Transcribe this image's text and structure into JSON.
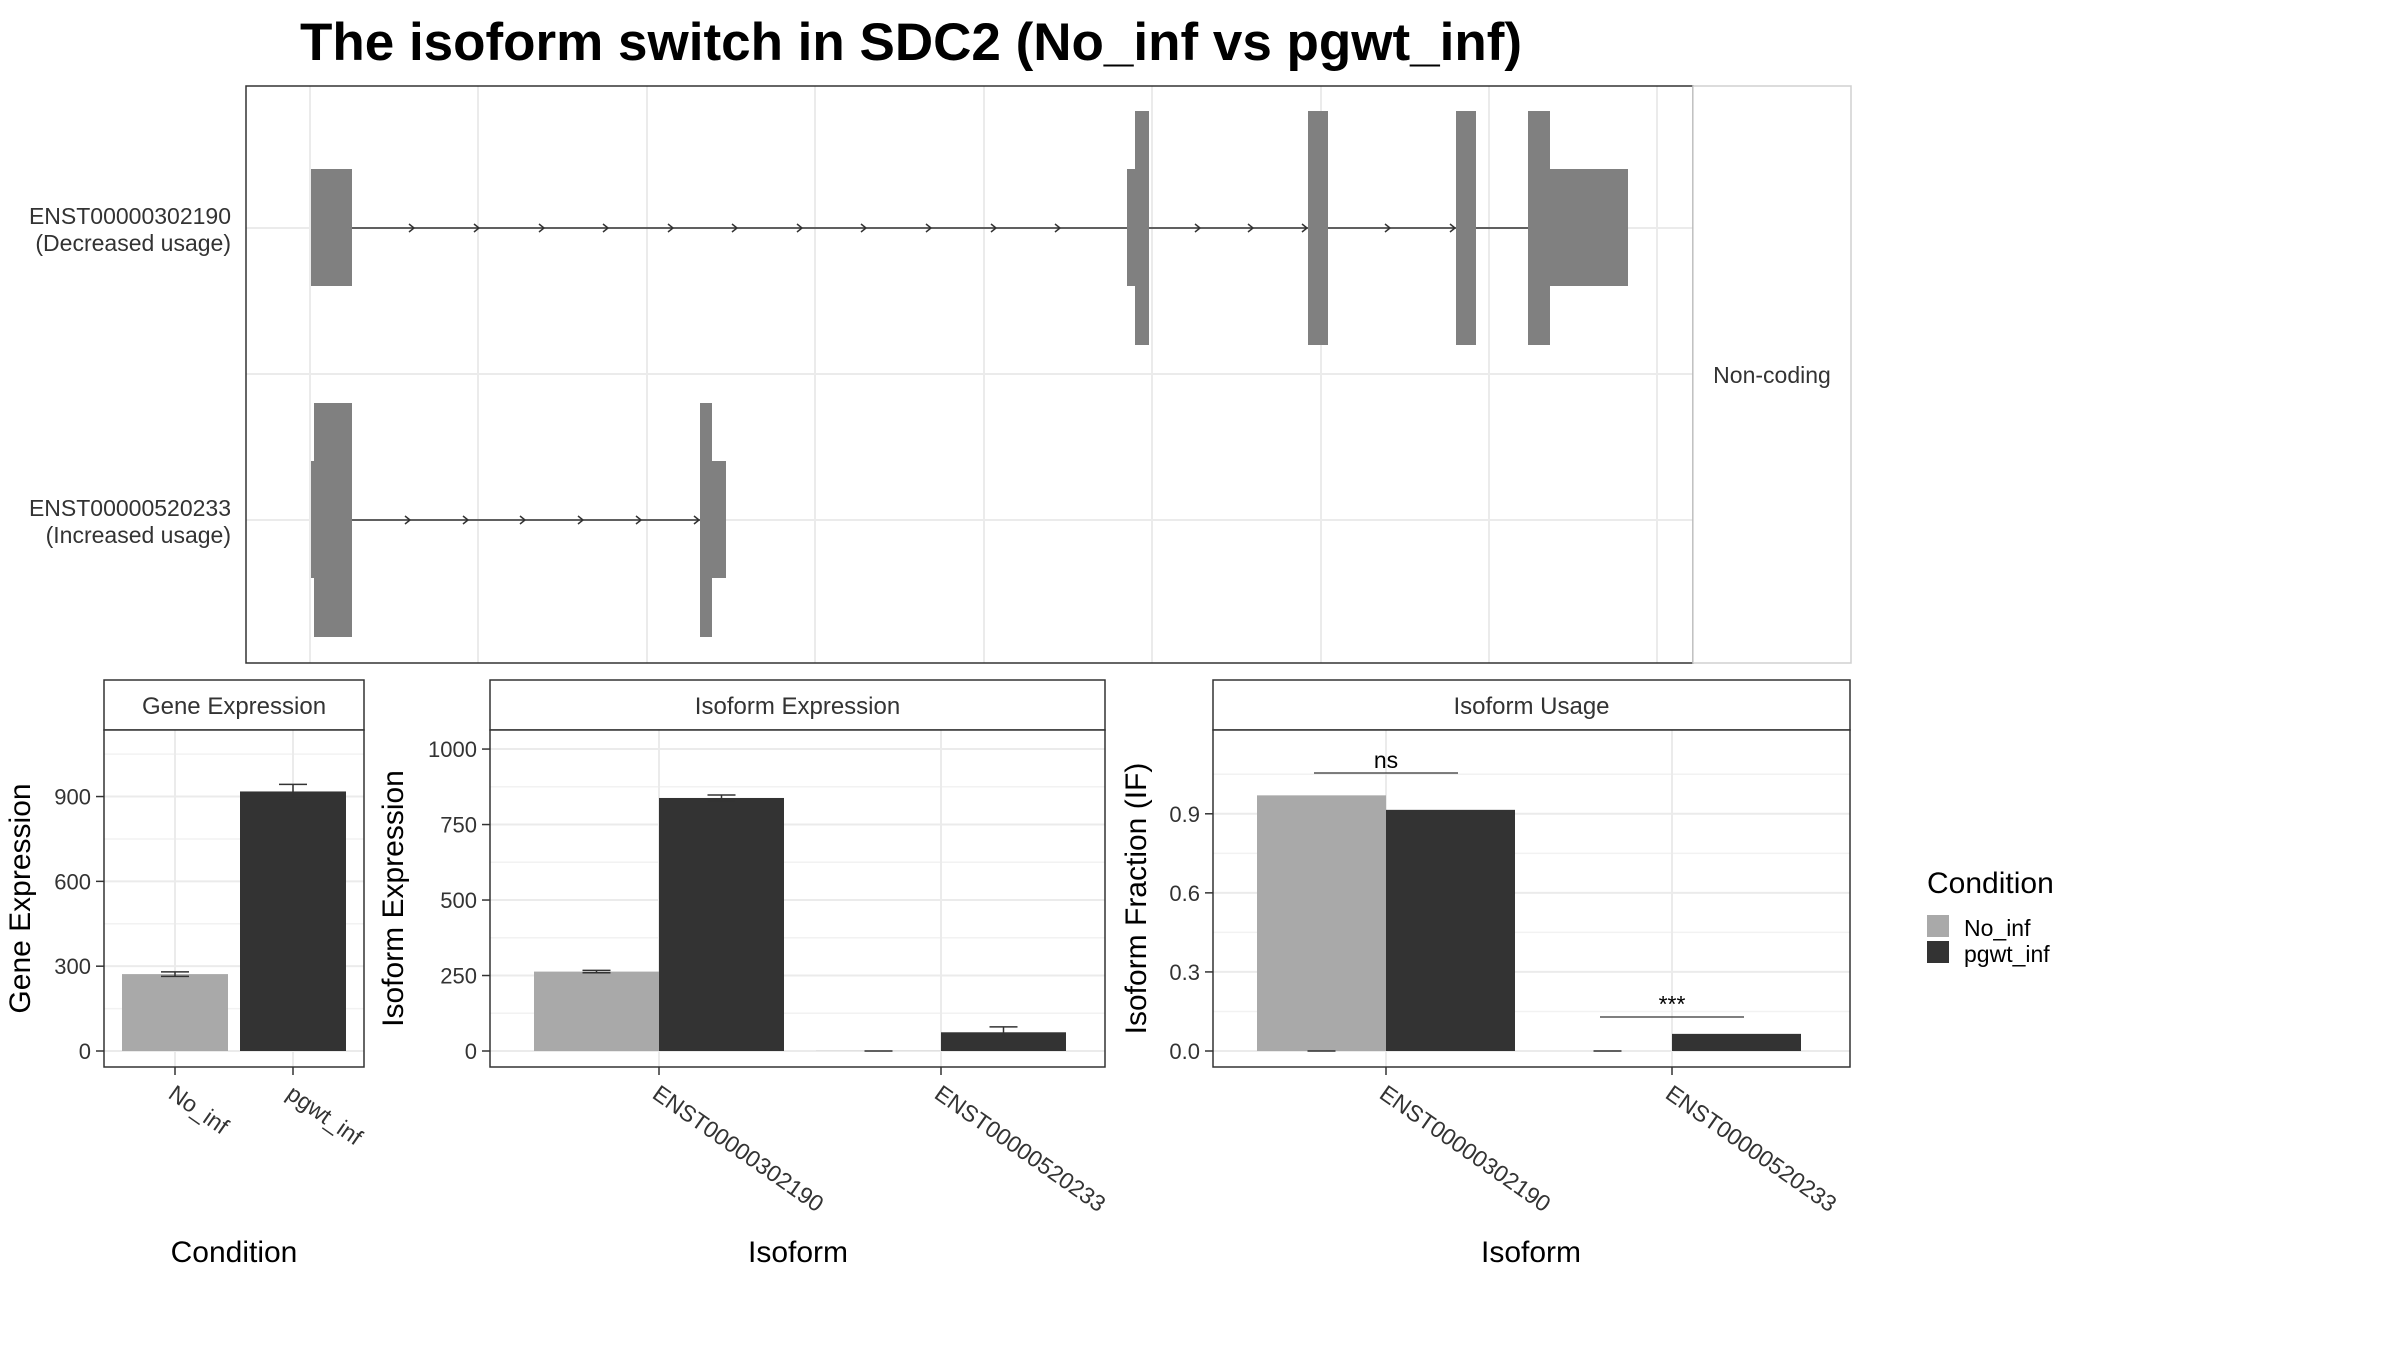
{
  "title": "The isoform switch in SDC2 (No_inf vs pgwt_inf)",
  "colors": {
    "no_inf": "#a9a9a9",
    "pgwt_inf": "#333333",
    "exon": "#808080",
    "grid": "#ebebeb",
    "panel_border": "#333333"
  },
  "structure": {
    "facet_label": "Non-coding",
    "isoforms": [
      {
        "id": "ENST00000302190",
        "usage": "(Decreased usage)"
      },
      {
        "id": "ENST00000520233",
        "usage": "(Increased usage)"
      }
    ]
  },
  "legend": {
    "title": "Condition",
    "items": [
      "No_inf",
      "pgwt_inf"
    ]
  },
  "chart_data": [
    {
      "type": "bar",
      "strip": "Gene Expression",
      "xlabel": "Condition",
      "ylabel": "Gene Expression",
      "categories": [
        "No_inf",
        "pgwt_inf"
      ],
      "values": [
        272,
        918
      ],
      "errors": [
        8,
        25
      ],
      "ylim": [
        0,
        1100
      ],
      "yticks": [
        "0",
        "300",
        "600",
        "900"
      ]
    },
    {
      "type": "bar",
      "strip": "Isoform Expression",
      "xlabel": "Isoform",
      "ylabel": "Isoform Expression",
      "categories": [
        "ENST00000302190",
        "ENST00000520233"
      ],
      "series": [
        {
          "name": "No_inf",
          "values": [
            263,
            0.5
          ],
          "errors": [
            4,
            0.5
          ]
        },
        {
          "name": "pgwt_inf",
          "values": [
            838,
            62
          ],
          "errors": [
            10,
            18
          ]
        }
      ],
      "ylim": [
        0,
        1030
      ],
      "yticks": [
        "0",
        "250",
        "500",
        "750",
        "1000"
      ]
    },
    {
      "type": "bar",
      "strip": "Isoform Usage",
      "xlabel": "Isoform",
      "ylabel": "Isoform Fraction (IF)",
      "categories": [
        "ENST00000302190",
        "ENST00000520233"
      ],
      "series": [
        {
          "name": "No_inf",
          "values": [
            0.97,
            0
          ]
        },
        {
          "name": "pgwt_inf",
          "values": [
            0.915,
            0.065
          ]
        }
      ],
      "significance": [
        "ns",
        "***"
      ],
      "ylim": [
        0,
        1.18
      ],
      "yticks": [
        "0.0",
        "0.3",
        "0.6",
        "0.9"
      ]
    }
  ]
}
